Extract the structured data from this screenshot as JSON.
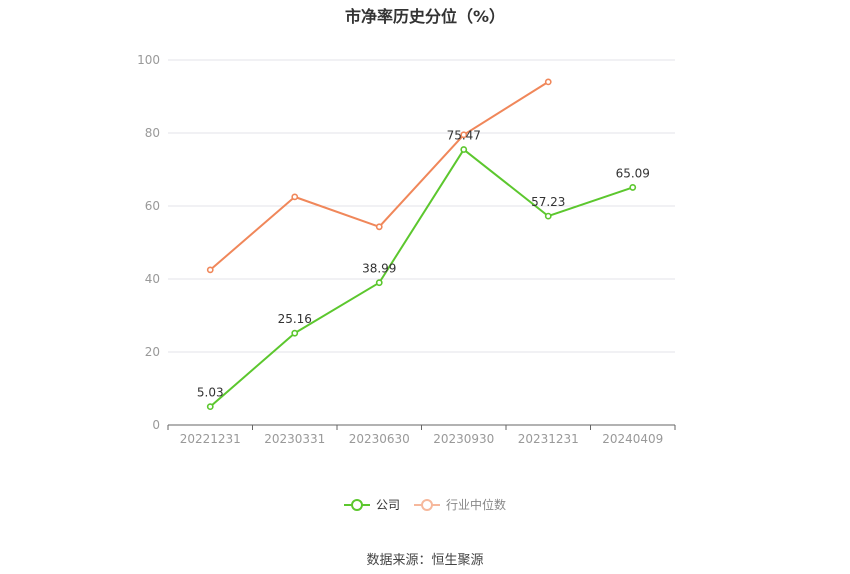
{
  "chart_data": {
    "type": "line",
    "title": "市净率历史分位（%）",
    "categories": [
      "20221231",
      "20230331",
      "20230630",
      "20230930",
      "20231231",
      "20240409"
    ],
    "ylim": [
      0,
      100
    ],
    "yticks": [
      0,
      20,
      40,
      60,
      80,
      100
    ],
    "grid": true,
    "legend_position": "bottom",
    "series": [
      {
        "name": "公司",
        "color": "#5cc72e",
        "values": [
          5.03,
          25.16,
          38.99,
          75.47,
          57.23,
          65.09
        ],
        "labels": [
          "5.03",
          "25.16",
          "38.99",
          "75.47",
          "57.23",
          "65.09"
        ]
      },
      {
        "name": "行业中位数",
        "color": "#f0875a",
        "values": [
          42.5,
          62.5,
          54.3,
          79.5,
          94.0,
          null
        ]
      }
    ]
  },
  "legend": {
    "company_label": "公司",
    "industry_label": "行业中位数"
  },
  "footer": {
    "source": "数据来源：恒生聚源"
  }
}
